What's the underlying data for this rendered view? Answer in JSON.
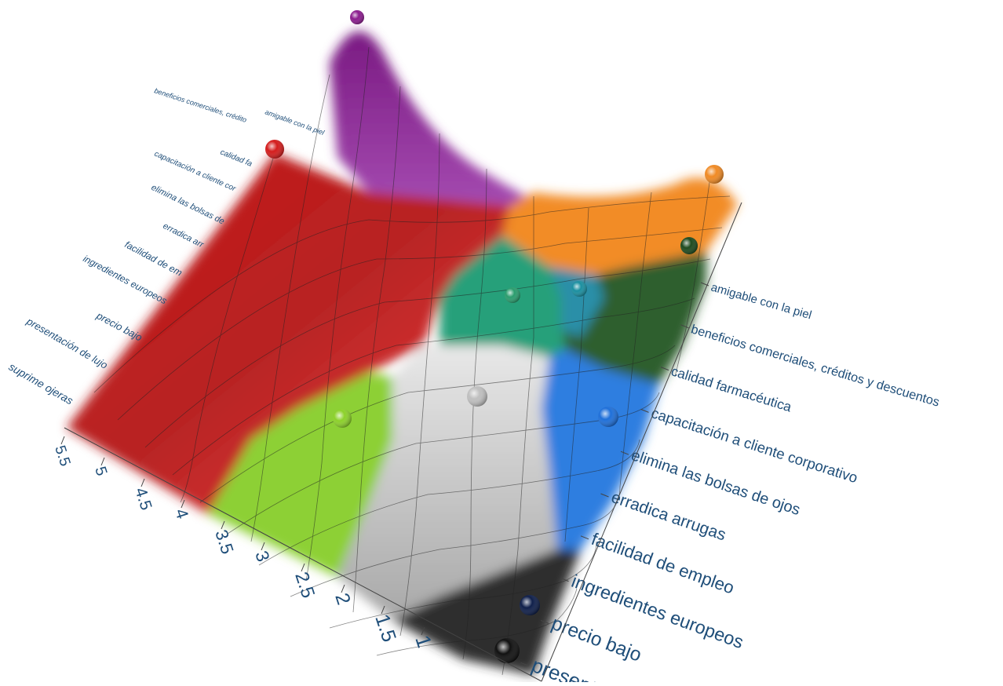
{
  "chart_data": {
    "type": "surface",
    "x_axis": {
      "name": "",
      "categories": [
        "amigable con la piel",
        "beneficios comerciales, créditos y descuentos",
        "calidad farmacéutica",
        "capacitación a cliente corporativo",
        "elimina  las bolsas de ojos",
        "erradica arrugas",
        "facilidad de empleo",
        "ingredientes europeos",
        "precio bajo",
        "presentación de lujo",
        "suprime  ojeras"
      ],
      "back_labels_partial": [
        "beneficios comerciales, crédito",
        "amigable con la piel",
        "calidad fa",
        "capacitación a cliente cor",
        "elimina  las bolsas de",
        "erradica arr",
        "facilidad de em",
        "ingredientes europeos",
        "precio bajo",
        "presentación de lujo",
        "suprime  ojeras"
      ],
      "front_labels_partial": {
        "presentación de lujo": "presentació"
      }
    },
    "y_axis": {
      "name": "",
      "ticks": [
        "5.5",
        "5",
        "4.5",
        "4",
        "3.5",
        "3",
        "2.5",
        "2",
        "1.5",
        "1"
      ]
    },
    "peaks": [
      {
        "color": "#8b1c8e",
        "category": "amigable con la piel",
        "height": 1.0
      },
      {
        "color": "#d41c1c",
        "category": "presentación de lujo",
        "height": 0.75
      },
      {
        "color": "#f08a24",
        "category": "amigable con la piel",
        "height": 0.35
      },
      {
        "color": "#1e4a1e",
        "category": "amigable con la piel",
        "height": 0.1
      },
      {
        "color": "#2a9d6e",
        "category": "calidad farmacéutica",
        "height": 0.1
      },
      {
        "color": "#1a8fa0",
        "category": "beneficios comerciales, créditos y descuentos",
        "height": 0.1
      },
      {
        "color": "#8cd12a",
        "category": "facilidad de empleo",
        "height": 0.1
      },
      {
        "color": "#bfbfbf",
        "category": "capacitación a cliente corporativo",
        "height": 0.2
      },
      {
        "color": "#1e6fd9",
        "category": "elimina  las bolsas de ojos",
        "height": 0.1
      },
      {
        "color": "#0f1f4a",
        "category": "precio bajo",
        "height": 0.05
      },
      {
        "color": "#111111",
        "category": "presentación de lujo",
        "height": 0.05
      }
    ],
    "colors": {
      "axis_text": "#1f4e79",
      "red": "#e83030",
      "purple": "#8e2a96",
      "orange": "#f28c28",
      "green_dark": "#2f5f2f",
      "teal": "#28a07a",
      "lime": "#8dd034",
      "grey": "#c8c8c8",
      "blue": "#2f7ee0",
      "black": "#2a2a2a"
    }
  }
}
